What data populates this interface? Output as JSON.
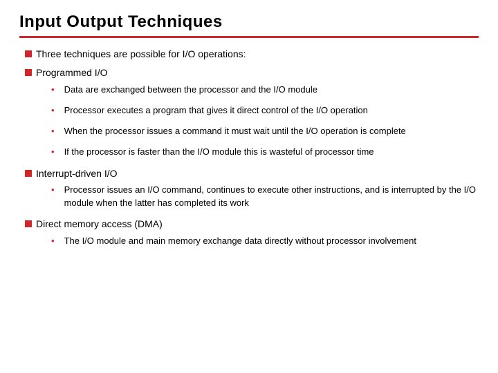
{
  "title": "Input Output Techniques",
  "heading1": "Three techniques are possible for I/O operations:",
  "section1": {
    "title": "Programmed I/O",
    "items": [
      "Data are exchanged between the processor and the I/O module",
      "Processor executes a program that gives it direct control of the I/O operation",
      "When the processor issues a command it must wait until the I/O operation is complete",
      "If the processor is faster than the I/O module this is wasteful of processor time"
    ]
  },
  "section2": {
    "title": "Interrupt-driven I/O",
    "items": [
      "Processor issues an I/O command, continues to execute other instructions, and is interrupted by the I/O module when the latter has completed its work"
    ]
  },
  "section3": {
    "title": "Direct memory access (DMA)",
    "items": [
      "The I/O module and main memory exchange data directly without processor involvement"
    ]
  },
  "colors": {
    "accent": "#d02628",
    "text": "#000000",
    "background": "#ffffff"
  }
}
